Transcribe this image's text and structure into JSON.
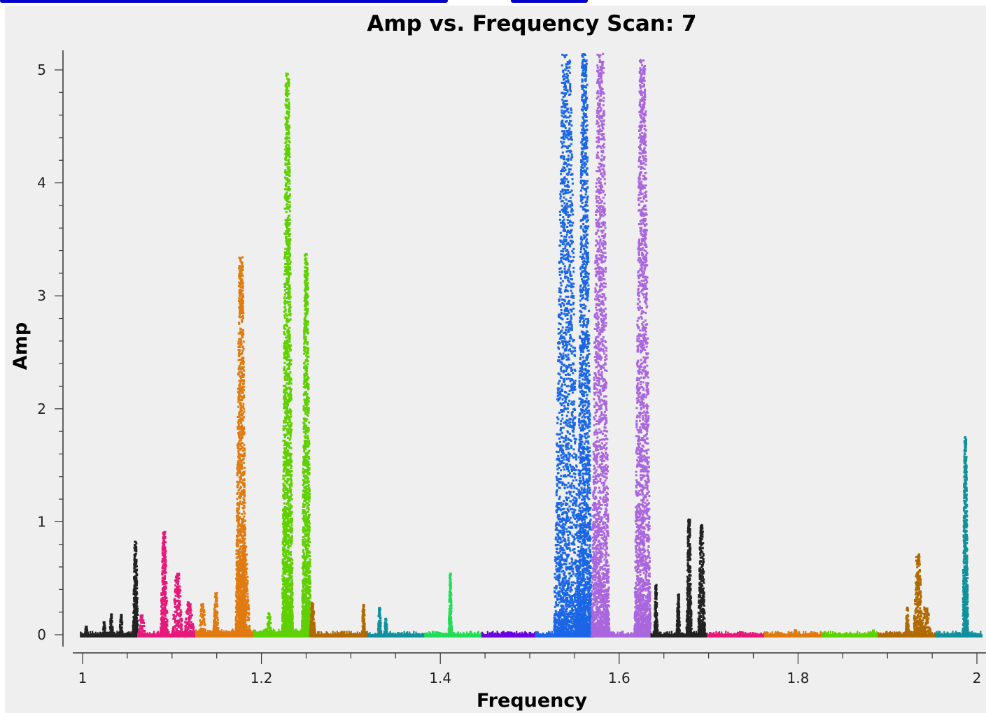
{
  "chart_data": {
    "type": "scatter",
    "title": "Amp vs. Frequency Scan: 7",
    "xlabel": "Frequency",
    "ylabel": "Amp",
    "xlim": [
      0.997,
      2.005
    ],
    "ylim": [
      -0.1,
      5.15
    ],
    "xticks": [
      {
        "value": 1,
        "label": "1"
      },
      {
        "value": 1.2,
        "label": "1.2"
      },
      {
        "value": 1.4,
        "label": "1.4"
      },
      {
        "value": 1.6,
        "label": "1.6"
      },
      {
        "value": 1.8,
        "label": "1.8"
      },
      {
        "value": 2,
        "label": "2"
      }
    ],
    "yticks": [
      {
        "value": 0,
        "label": "0"
      },
      {
        "value": 1,
        "label": "1"
      },
      {
        "value": 2,
        "label": "2"
      },
      {
        "value": 3,
        "label": "3"
      },
      {
        "value": 4,
        "label": "4"
      },
      {
        "value": 5,
        "label": "5"
      }
    ],
    "grid": false,
    "legend": "none",
    "series": [
      {
        "color": "#222222",
        "x_range": [
          0.997,
          1.061
        ],
        "baseline": 0.0,
        "spikes": [
          {
            "x": 1.003,
            "peak": 0.08,
            "width": 0.002
          },
          {
            "x": 1.023,
            "peak": 0.12,
            "width": 0.002
          },
          {
            "x": 1.031,
            "peak": 0.19,
            "width": 0.002
          },
          {
            "x": 1.042,
            "peak": 0.19,
            "width": 0.002
          },
          {
            "x": 1.058,
            "peak": 0.84,
            "width": 0.003
          }
        ]
      },
      {
        "color": "#e6197a",
        "x_range": [
          1.061,
          1.126
        ],
        "baseline": 0.0,
        "spikes": [
          {
            "x": 1.065,
            "peak": 0.18,
            "width": 0.004
          },
          {
            "x": 1.09,
            "peak": 0.92,
            "width": 0.004
          },
          {
            "x": 1.105,
            "peak": 0.55,
            "width": 0.006
          },
          {
            "x": 1.118,
            "peak": 0.3,
            "width": 0.006
          }
        ]
      },
      {
        "color": "#e07b10",
        "x_range": [
          1.126,
          1.191
        ],
        "baseline": 0.02,
        "spikes": [
          {
            "x": 1.133,
            "peak": 0.28,
            "width": 0.004
          },
          {
            "x": 1.148,
            "peak": 0.38,
            "width": 0.003
          },
          {
            "x": 1.176,
            "peak": 3.35,
            "width": 0.006
          },
          {
            "x": 1.18,
            "peak": 0.8,
            "width": 0.006
          }
        ]
      },
      {
        "color": "#5fd000",
        "x_range": [
          1.191,
          1.255
        ],
        "baseline": 0.02,
        "spikes": [
          {
            "x": 1.207,
            "peak": 0.2,
            "width": 0.004
          },
          {
            "x": 1.228,
            "peak": 4.98,
            "width": 0.006
          },
          {
            "x": 1.249,
            "peak": 3.38,
            "width": 0.005
          }
        ]
      },
      {
        "color": "#b06a00",
        "x_range": [
          1.255,
          1.318
        ],
        "baseline": 0.0,
        "spikes": [
          {
            "x": 1.256,
            "peak": 0.3,
            "width": 0.003
          },
          {
            "x": 1.313,
            "peak": 0.28,
            "width": 0.002
          }
        ]
      },
      {
        "color": "#11919c",
        "x_range": [
          1.318,
          1.382
        ],
        "baseline": 0.0,
        "spikes": [
          {
            "x": 1.331,
            "peak": 0.26,
            "width": 0.002
          },
          {
            "x": 1.338,
            "peak": 0.15,
            "width": 0.002
          }
        ]
      },
      {
        "color": "#22dd55",
        "x_range": [
          1.382,
          1.446
        ],
        "baseline": 0.0,
        "spikes": [
          {
            "x": 1.41,
            "peak": 0.55,
            "width": 0.002
          }
        ]
      },
      {
        "color": "#6a00e0",
        "x_range": [
          1.446,
          1.506
        ],
        "baseline": 0.0,
        "spikes": [
          {
            "x": 1.476,
            "peak": 0.03,
            "width": 0.01
          }
        ]
      },
      {
        "color": "#1a66e6",
        "x_range": [
          1.506,
          1.571
        ],
        "baseline": 0.0,
        "spikes": [
          {
            "x": 1.54,
            "peak": 5.15,
            "width": 0.014
          },
          {
            "x": 1.56,
            "peak": 5.15,
            "width": 0.008
          }
        ]
      },
      {
        "color": "#aa66dd",
        "x_range": [
          1.571,
          1.635
        ],
        "baseline": 0.0,
        "spikes": [
          {
            "x": 1.578,
            "peak": 5.15,
            "width": 0.01
          },
          {
            "x": 1.625,
            "peak": 5.1,
            "width": 0.009
          }
        ]
      },
      {
        "color": "#222222",
        "x_range": [
          1.635,
          1.698
        ],
        "baseline": 0.0,
        "spikes": [
          {
            "x": 1.64,
            "peak": 0.45,
            "width": 0.002
          },
          {
            "x": 1.665,
            "peak": 0.37,
            "width": 0.002
          },
          {
            "x": 1.677,
            "peak": 1.03,
            "width": 0.003
          },
          {
            "x": 1.691,
            "peak": 1.0,
            "width": 0.004
          }
        ]
      },
      {
        "color": "#e6197a",
        "x_range": [
          1.698,
          1.762
        ],
        "baseline": 0.0,
        "spikes": []
      },
      {
        "color": "#e07b10",
        "x_range": [
          1.762,
          1.826
        ],
        "baseline": 0.0,
        "spikes": [
          {
            "x": 1.796,
            "peak": 0.05,
            "width": 0.002
          }
        ]
      },
      {
        "color": "#5fd000",
        "x_range": [
          1.826,
          1.889
        ],
        "baseline": 0.0,
        "spikes": [
          {
            "x": 1.883,
            "peak": 0.05,
            "width": 0.002
          }
        ]
      },
      {
        "color": "#b06a00",
        "x_range": [
          1.889,
          1.953
        ],
        "baseline": 0.0,
        "spikes": [
          {
            "x": 1.921,
            "peak": 0.25,
            "width": 0.002
          },
          {
            "x": 1.933,
            "peak": 0.72,
            "width": 0.005
          },
          {
            "x": 1.942,
            "peak": 0.25,
            "width": 0.006
          }
        ]
      },
      {
        "color": "#11919c",
        "x_range": [
          1.953,
          2.005
        ],
        "baseline": 0.0,
        "spikes": [
          {
            "x": 1.986,
            "peak": 1.76,
            "width": 0.003
          }
        ]
      }
    ]
  }
}
